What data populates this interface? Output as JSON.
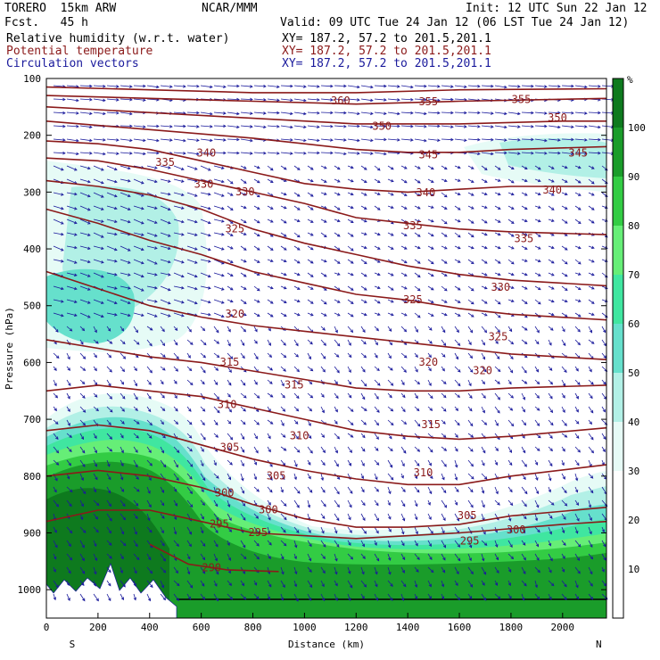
{
  "header": {
    "model": "TORERO  15km ARW",
    "fcst": "Fcst.   45 h",
    "center": "NCAR/MMM",
    "init": "Init: 12 UTC Sun 22 Jan 12",
    "valid": "Valid: 09 UTC Tue 24 Jan 12 (06 LST Tue 24 Jan 12)",
    "fields": [
      {
        "name": "Relative humidity (w.r.t. water)",
        "xy": "XY= 187.2, 57.2 to 201.5,201.1",
        "color": "#000000"
      },
      {
        "name": "Potential temperature",
        "xy": "XY= 187.2, 57.2 to 201.5,201.1",
        "color": "#8b1a1a"
      },
      {
        "name": "Circulation vectors",
        "xy": "XY= 187.2, 57.2 to 201.5,201.1",
        "color": "#1a1a9c"
      }
    ]
  },
  "chart_data": {
    "type": "contour",
    "xlabel": "Distance (km)",
    "ylabel": "Pressure (hPa)",
    "xlim": [
      0,
      2170
    ],
    "ylim": [
      1050,
      100
    ],
    "x_ticks": [
      0,
      200,
      400,
      600,
      800,
      1000,
      1200,
      1400,
      1600,
      1800,
      2000
    ],
    "y_ticks": [
      100,
      200,
      300,
      400,
      500,
      600,
      700,
      800,
      900,
      1000
    ],
    "x_end_labels": {
      "left": "S",
      "right": "N"
    },
    "colorbar": {
      "unit": "%",
      "levels": [
        0,
        10,
        20,
        30,
        40,
        50,
        60,
        70,
        80,
        90,
        100
      ],
      "labels": [
        "10",
        "20",
        "30",
        "40",
        "50",
        "60",
        "70",
        "80",
        "90",
        "100"
      ],
      "colors": [
        "#ffffff",
        "#ffffff",
        "#ffffff",
        "#e6fbf6",
        "#b2f0e6",
        "#66e0cc",
        "#40e6a0",
        "#66ee77",
        "#33cc44",
        "#1a9c2a",
        "#0e7a1e"
      ]
    },
    "theta_contours": [
      {
        "level": 290,
        "points": [
          [
            400,
            920
          ],
          [
            550,
            955
          ],
          [
            700,
            965
          ],
          [
            900,
            968
          ]
        ]
      },
      {
        "level": 295,
        "points": [
          [
            0,
            880
          ],
          [
            200,
            860
          ],
          [
            400,
            860
          ],
          [
            600,
            880
          ],
          [
            800,
            900
          ],
          [
            1200,
            910
          ],
          [
            1600,
            900
          ],
          [
            2000,
            885
          ],
          [
            2170,
            880
          ]
        ]
      },
      {
        "level": 300,
        "points": [
          [
            0,
            800
          ],
          [
            200,
            790
          ],
          [
            400,
            800
          ],
          [
            600,
            820
          ],
          [
            800,
            850
          ],
          [
            1000,
            875
          ],
          [
            1200,
            890
          ],
          [
            1400,
            890
          ],
          [
            1600,
            885
          ],
          [
            1800,
            870
          ],
          [
            2170,
            855
          ]
        ]
      },
      {
        "level": 305,
        "points": [
          [
            0,
            720
          ],
          [
            200,
            710
          ],
          [
            400,
            720
          ],
          [
            600,
            745
          ],
          [
            800,
            770
          ],
          [
            1000,
            790
          ],
          [
            1200,
            805
          ],
          [
            1400,
            815
          ],
          [
            1600,
            815
          ],
          [
            1800,
            800
          ],
          [
            2170,
            780
          ]
        ]
      },
      {
        "level": 310,
        "points": [
          [
            0,
            650
          ],
          [
            200,
            640
          ],
          [
            400,
            650
          ],
          [
            600,
            660
          ],
          [
            800,
            680
          ],
          [
            1000,
            700
          ],
          [
            1200,
            720
          ],
          [
            1400,
            730
          ],
          [
            1600,
            735
          ],
          [
            1800,
            730
          ],
          [
            2170,
            715
          ]
        ]
      },
      {
        "level": 315,
        "points": [
          [
            0,
            560
          ],
          [
            200,
            575
          ],
          [
            400,
            590
          ],
          [
            600,
            600
          ],
          [
            800,
            615
          ],
          [
            1000,
            630
          ],
          [
            1200,
            645
          ],
          [
            1400,
            650
          ],
          [
            1600,
            650
          ],
          [
            1800,
            645
          ],
          [
            2170,
            640
          ]
        ]
      },
      {
        "level": 320,
        "points": [
          [
            0,
            440
          ],
          [
            200,
            470
          ],
          [
            400,
            500
          ],
          [
            600,
            520
          ],
          [
            800,
            535
          ],
          [
            1000,
            545
          ],
          [
            1200,
            555
          ],
          [
            1400,
            565
          ],
          [
            1600,
            575
          ],
          [
            1800,
            585
          ],
          [
            2170,
            595
          ]
        ]
      },
      {
        "level": 325,
        "points": [
          [
            0,
            330
          ],
          [
            200,
            355
          ],
          [
            400,
            385
          ],
          [
            600,
            410
          ],
          [
            800,
            440
          ],
          [
            1000,
            460
          ],
          [
            1200,
            480
          ],
          [
            1400,
            490
          ],
          [
            1600,
            505
          ],
          [
            1800,
            515
          ],
          [
            2170,
            525
          ]
        ]
      },
      {
        "level": 330,
        "points": [
          [
            0,
            280
          ],
          [
            200,
            290
          ],
          [
            400,
            305
          ],
          [
            600,
            330
          ],
          [
            800,
            365
          ],
          [
            1000,
            390
          ],
          [
            1200,
            410
          ],
          [
            1400,
            430
          ],
          [
            1600,
            445
          ],
          [
            1800,
            455
          ],
          [
            2170,
            465
          ]
        ]
      },
      {
        "level": 335,
        "points": [
          [
            0,
            240
          ],
          [
            200,
            245
          ],
          [
            400,
            260
          ],
          [
            600,
            280
          ],
          [
            800,
            300
          ],
          [
            1000,
            320
          ],
          [
            1200,
            345
          ],
          [
            1400,
            355
          ],
          [
            1600,
            365
          ],
          [
            1800,
            370
          ],
          [
            2170,
            375
          ]
        ]
      },
      {
        "level": 340,
        "points": [
          [
            0,
            210
          ],
          [
            200,
            215
          ],
          [
            400,
            225
          ],
          [
            600,
            245
          ],
          [
            800,
            265
          ],
          [
            1000,
            285
          ],
          [
            1200,
            295
          ],
          [
            1400,
            300
          ],
          [
            1600,
            295
          ],
          [
            1800,
            290
          ],
          [
            2170,
            290
          ]
        ]
      },
      {
        "level": 345,
        "points": [
          [
            0,
            175
          ],
          [
            400,
            190
          ],
          [
            800,
            205
          ],
          [
            1000,
            215
          ],
          [
            1200,
            225
          ],
          [
            1400,
            230
          ],
          [
            1600,
            230
          ],
          [
            1800,
            225
          ],
          [
            2170,
            220
          ]
        ]
      },
      {
        "level": 350,
        "points": [
          [
            0,
            150
          ],
          [
            400,
            160
          ],
          [
            800,
            170
          ],
          [
            1200,
            180
          ],
          [
            1600,
            180
          ],
          [
            2000,
            175
          ],
          [
            2170,
            175
          ]
        ]
      },
      {
        "level": 355,
        "points": [
          [
            0,
            130
          ],
          [
            400,
            135
          ],
          [
            800,
            140
          ],
          [
            1200,
            145
          ],
          [
            1600,
            140
          ],
          [
            2170,
            135
          ]
        ]
      },
      {
        "level": 360,
        "points": [
          [
            0,
            115
          ],
          [
            400,
            120
          ],
          [
            800,
            125
          ],
          [
            1200,
            125
          ],
          [
            1600,
            120
          ],
          [
            2170,
            118
          ]
        ]
      }
    ],
    "contour_labels": [
      {
        "text": "360",
        "x": 1140,
        "p": 140
      },
      {
        "text": "355",
        "x": 1480,
        "p": 142
      },
      {
        "text": "355",
        "x": 1840,
        "p": 138
      },
      {
        "text": "350",
        "x": 1300,
        "p": 185
      },
      {
        "text": "350",
        "x": 1980,
        "p": 170
      },
      {
        "text": "345",
        "x": 1480,
        "p": 235
      },
      {
        "text": "345",
        "x": 2060,
        "p": 232
      },
      {
        "text": "340",
        "x": 620,
        "p": 232
      },
      {
        "text": "340",
        "x": 1470,
        "p": 302
      },
      {
        "text": "340",
        "x": 1960,
        "p": 297
      },
      {
        "text": "335",
        "x": 460,
        "p": 248
      },
      {
        "text": "335",
        "x": 1420,
        "p": 360
      },
      {
        "text": "335",
        "x": 1850,
        "p": 383
      },
      {
        "text": "330",
        "x": 610,
        "p": 287
      },
      {
        "text": "330",
        "x": 770,
        "p": 300
      },
      {
        "text": "330",
        "x": 1760,
        "p": 468
      },
      {
        "text": "325",
        "x": 730,
        "p": 365
      },
      {
        "text": "325",
        "x": 1420,
        "p": 490
      },
      {
        "text": "325",
        "x": 1750,
        "p": 555
      },
      {
        "text": "320",
        "x": 730,
        "p": 515
      },
      {
        "text": "320",
        "x": 1480,
        "p": 600
      },
      {
        "text": "320",
        "x": 1690,
        "p": 615
      },
      {
        "text": "315",
        "x": 710,
        "p": 600
      },
      {
        "text": "315",
        "x": 960,
        "p": 640
      },
      {
        "text": "315",
        "x": 1490,
        "p": 710
      },
      {
        "text": "310",
        "x": 700,
        "p": 675
      },
      {
        "text": "310",
        "x": 980,
        "p": 730
      },
      {
        "text": "310",
        "x": 1460,
        "p": 795
      },
      {
        "text": "305",
        "x": 710,
        "p": 750
      },
      {
        "text": "305",
        "x": 890,
        "p": 800
      },
      {
        "text": "305",
        "x": 1630,
        "p": 870
      },
      {
        "text": "300",
        "x": 690,
        "p": 830
      },
      {
        "text": "300",
        "x": 860,
        "p": 860
      },
      {
        "text": "300",
        "x": 1820,
        "p": 895
      },
      {
        "text": "295",
        "x": 670,
        "p": 885
      },
      {
        "text": "295",
        "x": 820,
        "p": 900
      },
      {
        "text": "295",
        "x": 1640,
        "p": 915
      },
      {
        "text": "290",
        "x": 640,
        "p": 962
      }
    ]
  }
}
